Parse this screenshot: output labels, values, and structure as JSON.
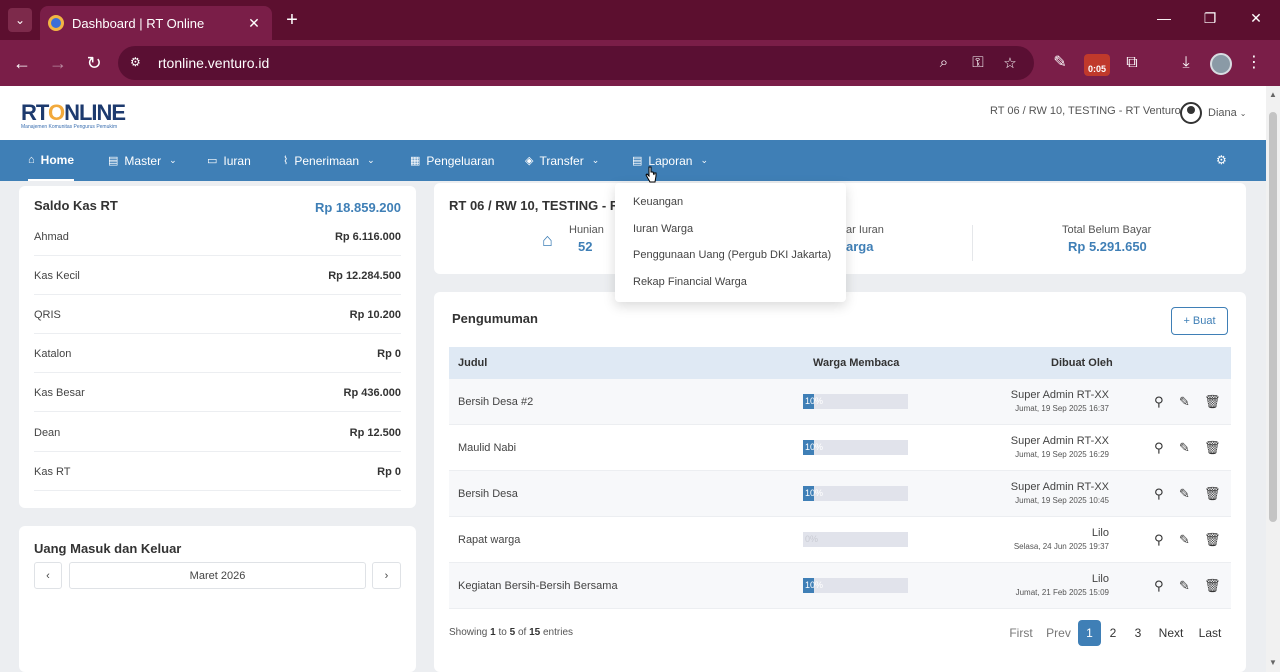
{
  "browser": {
    "tab_title": "Dashboard | RT Online",
    "url": "rtonline.venturo.id",
    "ext_badge": "0:05"
  },
  "app": {
    "logo_main_rt": "RT",
    "logo_main_o": "O",
    "logo_main_rest": "NLINE",
    "logo_sub": "Manajemen Komunitas Pengurus Pemukim",
    "header_info": "RT 06 / RW 10, TESTING - RT Venturo",
    "user_name": "Diana"
  },
  "nav": {
    "home": "Home",
    "master": "Master",
    "iuran": "Iuran",
    "penerimaan": "Penerimaan",
    "pengeluaran": "Pengeluaran",
    "transfer": "Transfer",
    "laporan": "Laporan"
  },
  "laporan_menu": [
    "Keuangan",
    "Iuran Warga",
    "Penggunaan Uang (Pergub DKI Jakarta)",
    "Rekap Financial Warga"
  ],
  "saldo": {
    "title": "Saldo Kas RT",
    "total": "Rp 18.859.200",
    "rows": [
      {
        "name": "Ahmad",
        "amount": "Rp 6.116.000"
      },
      {
        "name": "Kas Kecil",
        "amount": "Rp 12.284.500"
      },
      {
        "name": "QRIS",
        "amount": "Rp 10.200"
      },
      {
        "name": "Katalon",
        "amount": "Rp 0"
      },
      {
        "name": "Kas Besar",
        "amount": "Rp 436.000"
      },
      {
        "name": "Dean",
        "amount": "Rp 12.500"
      },
      {
        "name": "Kas RT",
        "amount": "Rp 0"
      }
    ]
  },
  "uang": {
    "title": "Uang Masuk dan Keluar",
    "prev": "‹",
    "month": "Maret 2026",
    "next": "›"
  },
  "summary": {
    "title": "RT 06 / RW 10, TESTING - RT",
    "hunian_label": "Hunian",
    "hunian_value": "52",
    "bayar_label": "ar Iuran",
    "bayar_value": "arga",
    "belum_label": "Total Belum Bayar",
    "belum_value": "Rp 5.291.650"
  },
  "pengumuman": {
    "title": "Pengumuman",
    "buat": "+ Buat",
    "headers": {
      "judul": "Judul",
      "warga": "Warga Membaca",
      "dibuat": "Dibuat Oleh"
    },
    "rows": [
      {
        "judul": "Bersih Desa #2",
        "progress": "10%",
        "by": "Super Admin RT-XX",
        "date": "Jumat, 19 Sep 2025 16:37"
      },
      {
        "judul": "Maulid Nabi",
        "progress": "10%",
        "by": "Super Admin RT-XX",
        "date": "Jumat, 19 Sep 2025 16:29"
      },
      {
        "judul": "Bersih Desa",
        "progress": "10%",
        "by": "Super Admin RT-XX",
        "date": "Jumat, 19 Sep 2025 10:45"
      },
      {
        "judul": "Rapat warga",
        "progress": "0%",
        "by": "Lilo",
        "date": "Selasa, 24 Jun 2025 19:37"
      },
      {
        "judul": "Kegiatan Bersih-Bersih Bersama",
        "progress": "10%",
        "by": "Lilo",
        "date": "Jumat, 21 Feb 2025 15:09"
      }
    ],
    "showing_prefix": "Showing",
    "showing_from": "1",
    "showing_to_word": "to",
    "showing_to": "5",
    "showing_of_word": "of",
    "showing_total": "15",
    "showing_suffix": "entries",
    "pager": {
      "first": "First",
      "prev": "Prev",
      "p1": "1",
      "p2": "2",
      "p3": "3",
      "next": "Next",
      "last": "Last"
    }
  }
}
